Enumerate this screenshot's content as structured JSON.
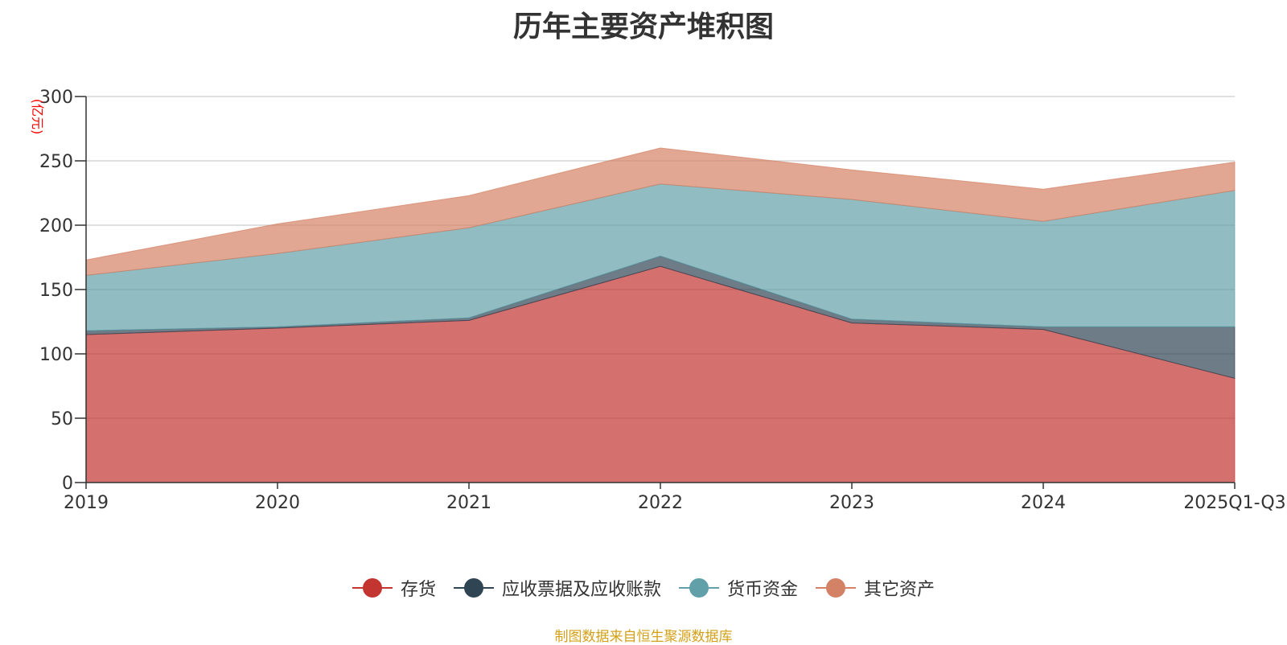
{
  "chart_data": {
    "type": "area",
    "stacked": true,
    "title": "历年主要资产堆积图",
    "ylabel": "(亿元)",
    "xlabel": "",
    "categories": [
      "2019",
      "2020",
      "2021",
      "2022",
      "2023",
      "2024",
      "2025Q1-Q3"
    ],
    "ylim": [
      0,
      300
    ],
    "yticks": [
      0,
      50,
      100,
      150,
      200,
      250,
      300
    ],
    "grid": true,
    "legend_position": "bottom",
    "series": [
      {
        "name": "存货",
        "color": "#c23531",
        "values": [
          115,
          120,
          126,
          168,
          124,
          119,
          81
        ]
      },
      {
        "name": "应收票据及应收账款",
        "color": "#2f4554",
        "values": [
          3,
          1,
          2,
          8,
          3,
          2,
          40
        ]
      },
      {
        "name": "货币资金",
        "color": "#61a0a8",
        "values": [
          43,
          57,
          70,
          56,
          93,
          82,
          106
        ]
      },
      {
        "name": "其它资产",
        "color": "#d48265",
        "values": [
          12,
          23,
          25,
          28,
          23,
          25,
          22
        ]
      }
    ]
  },
  "source_note": "制图数据来自恒生聚源数据库"
}
